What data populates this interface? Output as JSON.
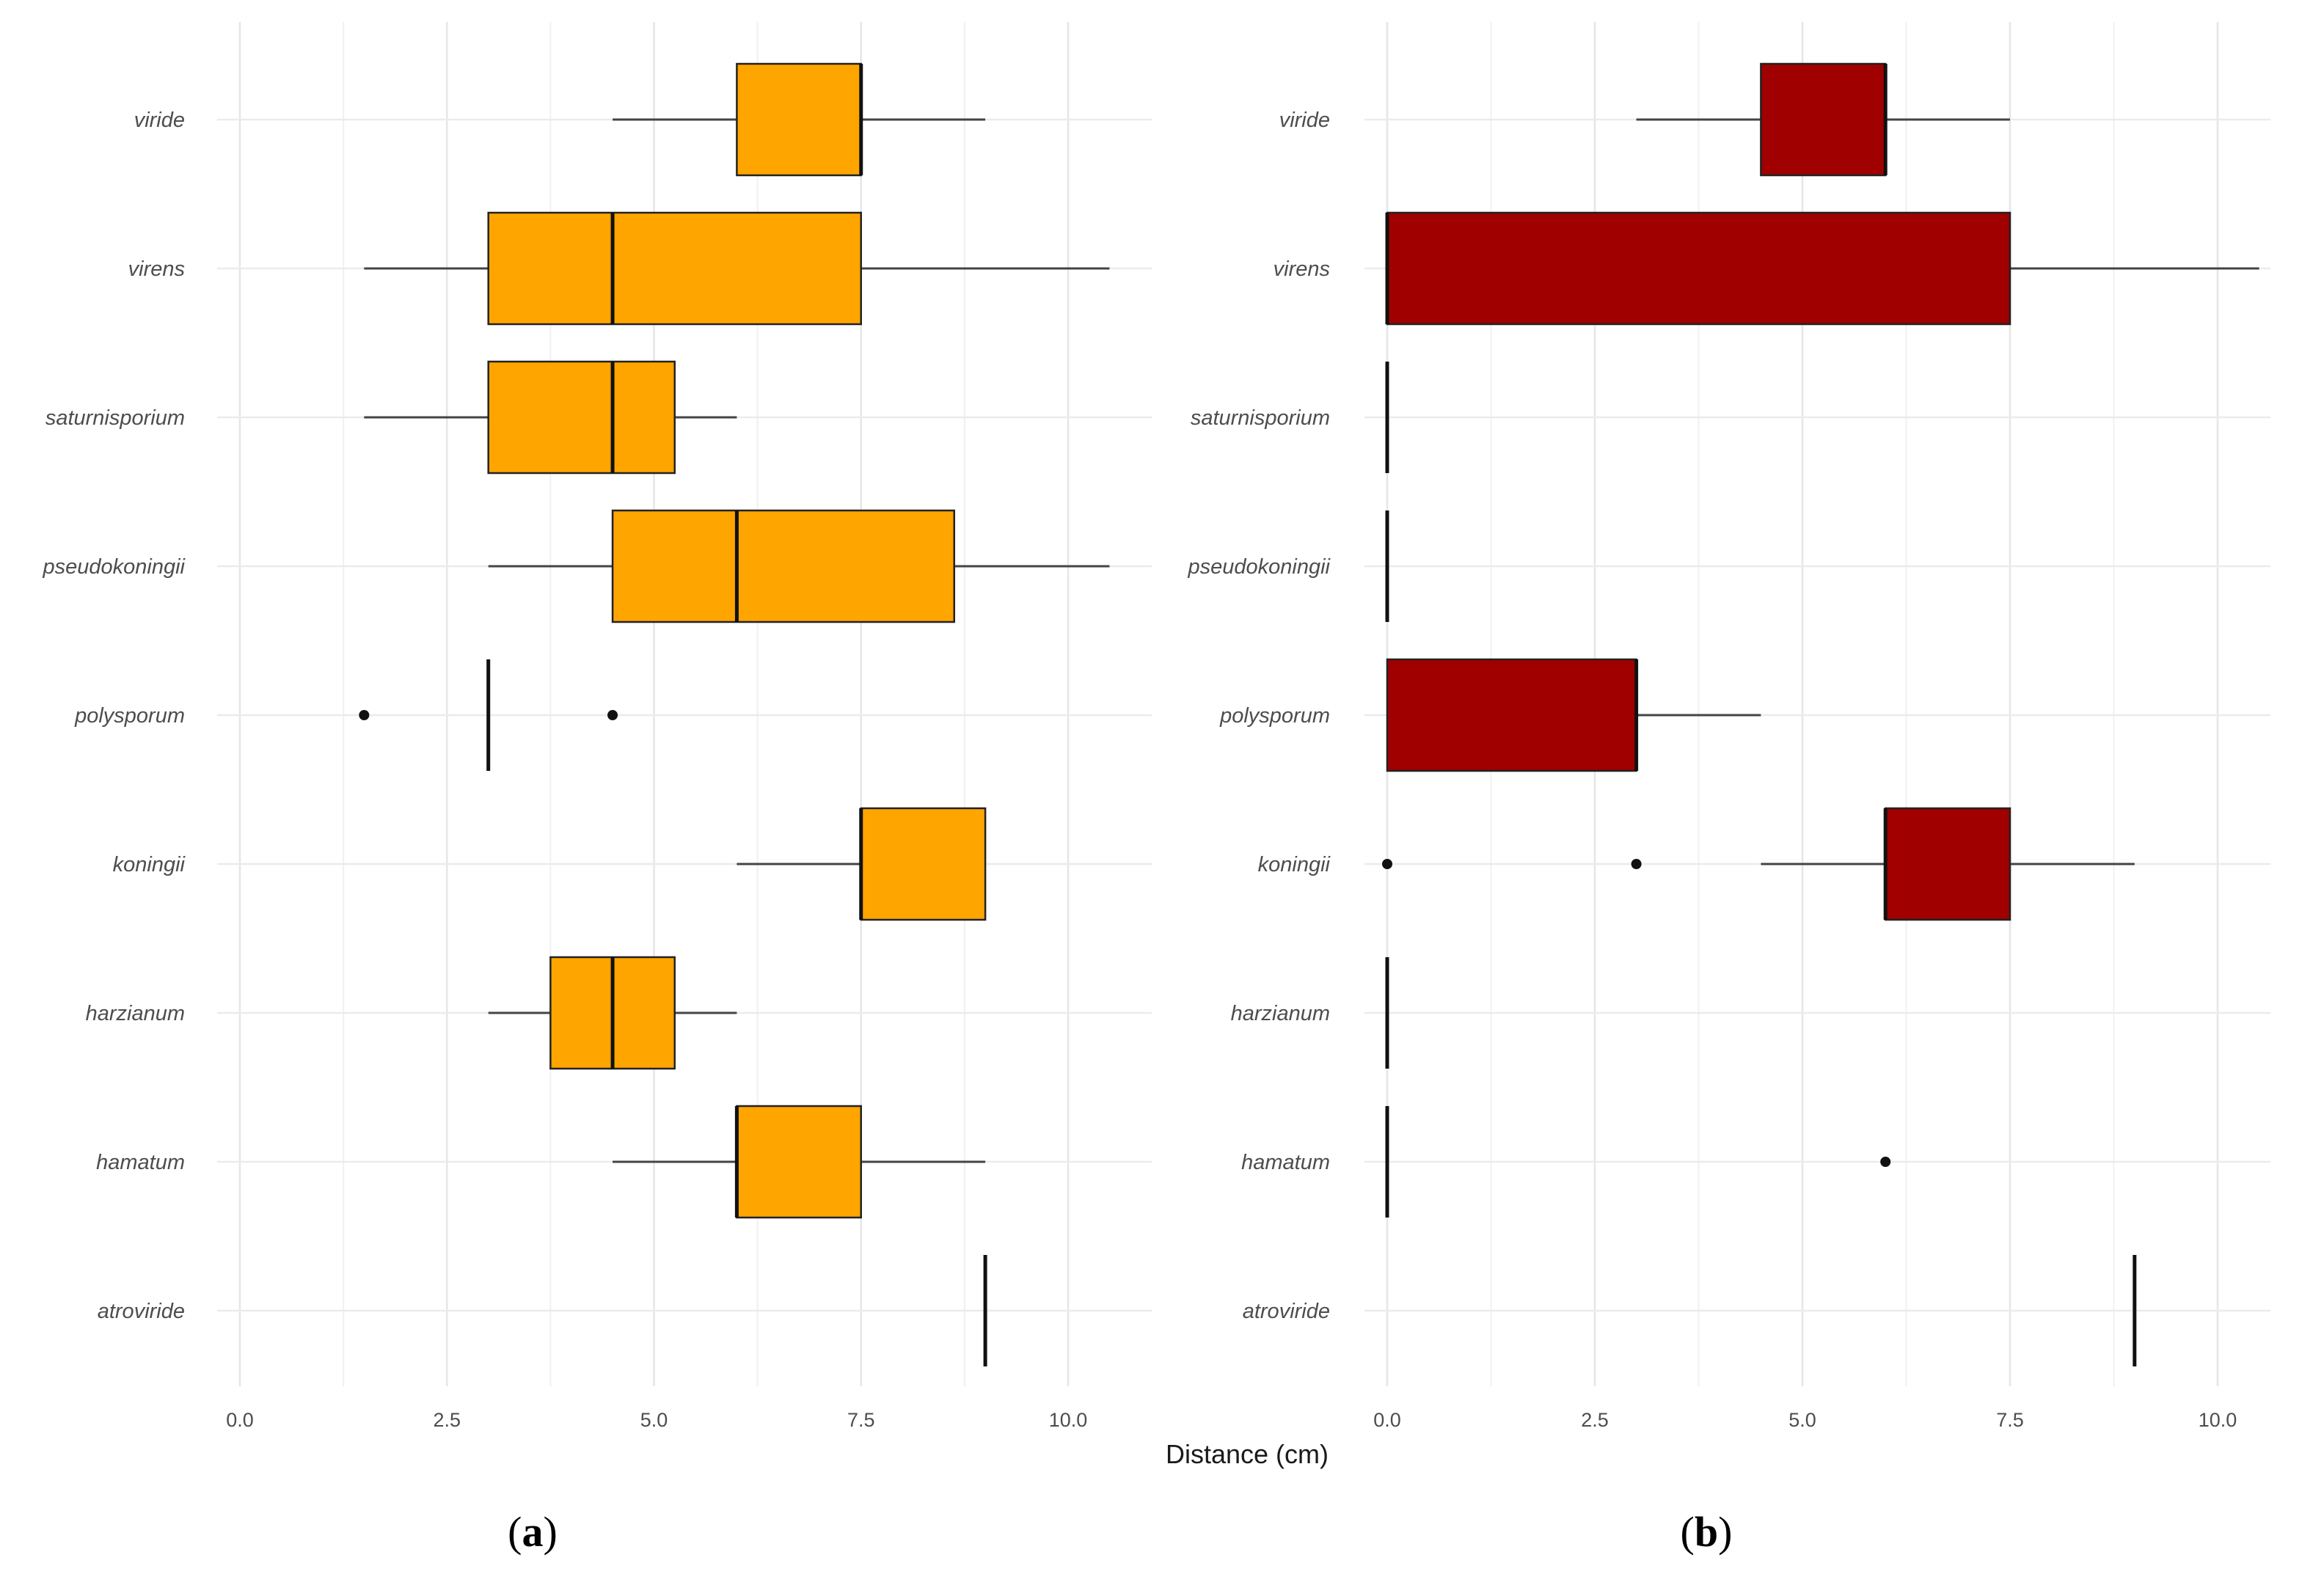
{
  "chart_data": [
    {
      "type": "boxplot",
      "panel": "a",
      "panel_label_open": "(",
      "panel_label_letter": "a",
      "panel_label_close": ")",
      "fill_color": "#FFA500",
      "orientation": "horizontal",
      "xlim": [
        -0.35,
        11.0
      ],
      "xticks": [
        0.0,
        2.5,
        5.0,
        7.5,
        10.0
      ],
      "xtick_labels": [
        "0.0",
        "2.5",
        "5.0",
        "7.5",
        "10.0"
      ],
      "categories": [
        "viride",
        "virens",
        "saturnisporium",
        "pseudokoningii",
        "polysporum",
        "koningii",
        "harzianum",
        "hamatum",
        "atroviride"
      ],
      "boxes": [
        {
          "label": "viride",
          "min": 4.5,
          "q1": 6.0,
          "median": 7.5,
          "q3": 7.5,
          "max": 9.0,
          "outliers": []
        },
        {
          "label": "virens",
          "min": 1.5,
          "q1": 3.0,
          "median": 4.5,
          "q3": 7.5,
          "max": 10.5,
          "outliers": []
        },
        {
          "label": "saturnisporium",
          "min": 1.5,
          "q1": 3.0,
          "median": 4.5,
          "q3": 5.25,
          "max": 6.0,
          "outliers": []
        },
        {
          "label": "pseudokoningii",
          "min": 3.0,
          "q1": 4.5,
          "median": 6.0,
          "q3": 8.625,
          "max": 10.5,
          "outliers": []
        },
        {
          "label": "polysporum",
          "min": 3.0,
          "q1": 3.0,
          "median": 3.0,
          "q3": 3.0,
          "max": 3.0,
          "outliers": [
            1.5,
            4.5
          ]
        },
        {
          "label": "koningii",
          "min": 6.0,
          "q1": 7.5,
          "median": 7.5,
          "q3": 9.0,
          "max": 9.0,
          "outliers": []
        },
        {
          "label": "harzianum",
          "min": 3.0,
          "q1": 3.75,
          "median": 4.5,
          "q3": 5.25,
          "max": 6.0,
          "outliers": []
        },
        {
          "label": "hamatum",
          "min": 4.5,
          "q1": 6.0,
          "median": 6.0,
          "q3": 7.5,
          "max": 9.0,
          "outliers": []
        },
        {
          "label": "atroviride",
          "min": 9.0,
          "q1": 9.0,
          "median": 9.0,
          "q3": 9.0,
          "max": 9.0,
          "outliers": []
        }
      ]
    },
    {
      "type": "boxplot",
      "panel": "b",
      "panel_label_open": "(",
      "panel_label_letter": "b",
      "panel_label_close": ")",
      "fill_color": "#A00000",
      "orientation": "horizontal",
      "xlim": [
        -0.35,
        11.0
      ],
      "xticks": [
        0.0,
        2.5,
        5.0,
        7.5,
        10.0
      ],
      "xtick_labels": [
        "0.0",
        "2.5",
        "5.0",
        "7.5",
        "10.0"
      ],
      "categories": [
        "viride",
        "virens",
        "saturnisporium",
        "pseudokoningii",
        "polysporum",
        "koningii",
        "harzianum",
        "hamatum",
        "atroviride"
      ],
      "boxes": [
        {
          "label": "viride",
          "min": 3.0,
          "q1": 4.5,
          "median": 6.0,
          "q3": 6.0,
          "max": 7.5,
          "outliers": []
        },
        {
          "label": "virens",
          "min": 0.0,
          "q1": 0.0,
          "median": 0.0,
          "q3": 7.5,
          "max": 10.5,
          "outliers": []
        },
        {
          "label": "saturnisporium",
          "min": 0.0,
          "q1": 0.0,
          "median": 0.0,
          "q3": 0.0,
          "max": 0.0,
          "outliers": []
        },
        {
          "label": "pseudokoningii",
          "min": 0.0,
          "q1": 0.0,
          "median": 0.0,
          "q3": 0.0,
          "max": 0.0,
          "outliers": []
        },
        {
          "label": "polysporum",
          "min": 0.0,
          "q1": 0.0,
          "median": 3.0,
          "q3": 3.0,
          "max": 4.5,
          "outliers": []
        },
        {
          "label": "koningii",
          "min": 4.5,
          "q1": 6.0,
          "median": 6.0,
          "q3": 7.5,
          "max": 9.0,
          "outliers": [
            0.0,
            3.0
          ]
        },
        {
          "label": "harzianum",
          "min": 0.0,
          "q1": 0.0,
          "median": 0.0,
          "q3": 0.0,
          "max": 0.0,
          "outliers": []
        },
        {
          "label": "hamatum",
          "min": 0.0,
          "q1": 0.0,
          "median": 0.0,
          "q3": 0.0,
          "max": 0.0,
          "outliers": [
            6.0
          ]
        },
        {
          "label": "atroviride",
          "min": 9.0,
          "q1": 9.0,
          "median": 9.0,
          "q3": 9.0,
          "max": 9.0,
          "outliers": []
        }
      ]
    }
  ],
  "shared_xlabel": "Distance (cm)"
}
